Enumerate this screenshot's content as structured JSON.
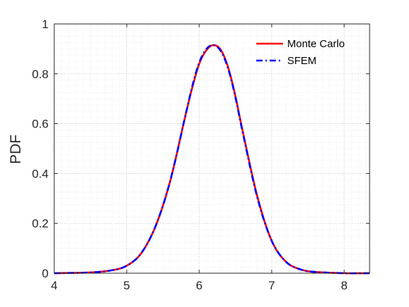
{
  "chart_data": {
    "type": "line",
    "xlabel": "",
    "ylabel": "PDF",
    "xlim": [
      4,
      8.35
    ],
    "ylim": [
      0,
      1
    ],
    "xticks": [
      4,
      5,
      6,
      7,
      8
    ],
    "yticks": [
      0,
      0.2,
      0.4,
      0.6,
      0.8,
      1
    ],
    "ytick_labels": [
      "0",
      "0.2",
      "0.4",
      "0.6",
      "0.8",
      "1"
    ],
    "grid": true,
    "minor_grid": true,
    "legend_position": "top-right",
    "series": [
      {
        "name": "Monte Carlo",
        "color": "#ff0000",
        "style": "solid",
        "x": [
          4.0,
          4.5,
          4.8,
          5.0,
          5.2,
          5.4,
          5.6,
          5.8,
          5.9,
          6.0,
          6.1,
          6.2,
          6.3,
          6.4,
          6.5,
          6.6,
          6.8,
          7.0,
          7.2,
          7.4,
          7.6,
          8.0,
          8.35
        ],
        "y": [
          0.0,
          0.003,
          0.012,
          0.03,
          0.08,
          0.19,
          0.37,
          0.62,
          0.74,
          0.84,
          0.895,
          0.915,
          0.895,
          0.825,
          0.71,
          0.57,
          0.31,
          0.13,
          0.045,
          0.015,
          0.005,
          0.0,
          0.0
        ]
      },
      {
        "name": "SFEM",
        "color": "#0000ff",
        "style": "dashdot",
        "x": [
          4.0,
          4.5,
          4.8,
          5.0,
          5.2,
          5.4,
          5.6,
          5.8,
          5.9,
          6.0,
          6.1,
          6.2,
          6.3,
          6.4,
          6.5,
          6.6,
          6.8,
          7.0,
          7.2,
          7.4,
          7.6,
          8.0,
          8.35
        ],
        "y": [
          0.0,
          0.003,
          0.012,
          0.03,
          0.08,
          0.19,
          0.37,
          0.62,
          0.745,
          0.845,
          0.9,
          0.915,
          0.89,
          0.82,
          0.705,
          0.565,
          0.305,
          0.13,
          0.045,
          0.015,
          0.005,
          0.0,
          0.0
        ]
      }
    ]
  }
}
